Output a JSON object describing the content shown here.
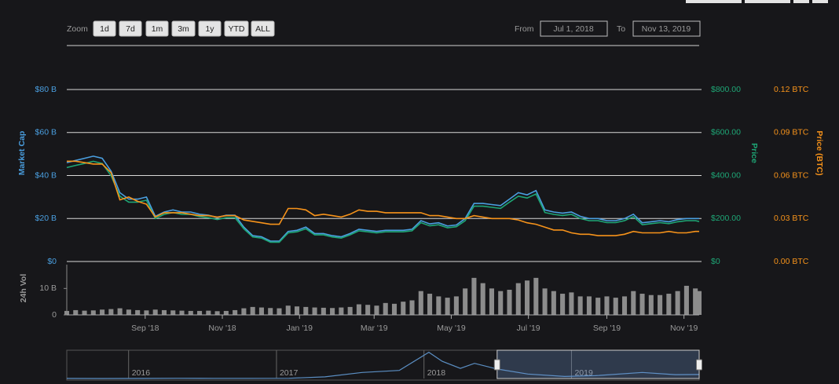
{
  "zoom": {
    "label": "Zoom",
    "buttons": [
      "1d",
      "7d",
      "1m",
      "3m",
      "1y",
      "YTD",
      "ALL"
    ]
  },
  "range": {
    "from_label": "From",
    "from": "Jul 1, 2018",
    "to_label": "To",
    "to": "Nov 13, 2019"
  },
  "chart_data": [
    {
      "type": "line",
      "x": [
        "2018-07-01",
        "2018-07-08",
        "2018-07-15",
        "2018-07-22",
        "2018-07-29",
        "2018-08-05",
        "2018-08-12",
        "2018-08-19",
        "2018-08-26",
        "2018-09-02",
        "2018-09-09",
        "2018-09-16",
        "2018-09-23",
        "2018-09-30",
        "2018-10-07",
        "2018-10-14",
        "2018-10-21",
        "2018-10-28",
        "2018-11-04",
        "2018-11-11",
        "2018-11-18",
        "2018-11-25",
        "2018-12-02",
        "2018-12-09",
        "2018-12-16",
        "2018-12-23",
        "2018-12-30",
        "2019-01-06",
        "2019-01-13",
        "2019-01-20",
        "2019-01-27",
        "2019-02-03",
        "2019-02-10",
        "2019-02-17",
        "2019-02-24",
        "2019-03-03",
        "2019-03-10",
        "2019-03-17",
        "2019-03-24",
        "2019-03-31",
        "2019-04-07",
        "2019-04-14",
        "2019-04-21",
        "2019-04-28",
        "2019-05-05",
        "2019-05-12",
        "2019-05-19",
        "2019-05-26",
        "2019-06-02",
        "2019-06-09",
        "2019-06-16",
        "2019-06-23",
        "2019-06-30",
        "2019-07-07",
        "2019-07-14",
        "2019-07-21",
        "2019-07-28",
        "2019-08-04",
        "2019-08-11",
        "2019-08-18",
        "2019-08-25",
        "2019-09-01",
        "2019-09-08",
        "2019-09-15",
        "2019-09-22",
        "2019-09-29",
        "2019-10-06",
        "2019-10-13",
        "2019-10-20",
        "2019-10-27",
        "2019-11-03",
        "2019-11-10",
        "2019-11-13"
      ],
      "xlim": [
        "2018-07-01",
        "2019-11-13"
      ],
      "ylim": [
        0,
        80
      ],
      "yticks": [
        {
          "value": 0,
          "label": "$0"
        },
        {
          "value": 20,
          "label": "$20 B"
        },
        {
          "value": 40,
          "label": "$40 B"
        },
        {
          "value": 60,
          "label": "$60 B"
        },
        {
          "value": 80,
          "label": "$80 B"
        }
      ],
      "y2lim": [
        0,
        800
      ],
      "y2ticks": [
        {
          "value": 0,
          "label": "$0"
        },
        {
          "value": 200,
          "label": "$200.00"
        },
        {
          "value": 400,
          "label": "$400.00"
        },
        {
          "value": 600,
          "label": "$600.00"
        },
        {
          "value": 800,
          "label": "$800.00"
        }
      ],
      "y3lim": [
        0,
        0.12
      ],
      "y3ticks": [
        {
          "value": 0,
          "label": "0.00 BTC"
        },
        {
          "value": 0.03,
          "label": "0.03 BTC"
        },
        {
          "value": 0.06,
          "label": "0.06 BTC"
        },
        {
          "value": 0.09,
          "label": "0.09 BTC"
        },
        {
          "value": 0.12,
          "label": "0.12 BTC"
        }
      ],
      "grid": true,
      "series": [
        {
          "name": "Market Cap",
          "color": "#4a9fe0",
          "values": [
            46,
            47,
            48,
            49,
            48,
            42,
            32,
            29,
            29,
            30,
            21,
            23,
            24,
            23,
            23,
            22,
            21.5,
            20.5,
            21.5,
            21.5,
            16,
            12,
            11.5,
            9.5,
            9.5,
            14,
            14.5,
            16,
            13,
            13,
            12,
            11.5,
            13,
            15,
            14.5,
            14,
            14.5,
            14.5,
            14.5,
            15,
            19,
            17.5,
            18,
            16.5,
            17,
            20,
            27,
            27,
            26.5,
            26,
            29,
            32,
            31,
            33,
            24,
            23,
            22.5,
            23,
            21,
            20,
            20,
            19,
            19,
            20,
            22,
            18,
            18.5,
            19,
            18.5,
            19.5,
            20,
            20,
            20
          ]
        },
        {
          "name": "Price",
          "color": "#1ea776",
          "axis": "y2",
          "values": [
            437,
            447,
            456,
            466,
            456,
            399,
            304,
            276,
            276,
            285,
            200,
            219,
            228,
            219,
            219,
            209,
            204,
            195,
            204,
            204,
            152,
            114,
            109,
            90,
            90,
            133,
            138,
            152,
            124,
            124,
            114,
            109,
            124,
            143,
            138,
            133,
            138,
            138,
            138,
            143,
            181,
            166,
            171,
            157,
            162,
            190,
            257,
            257,
            252,
            247,
            276,
            304,
            295,
            314,
            228,
            219,
            214,
            219,
            200,
            190,
            190,
            181,
            181,
            190,
            209,
            171,
            176,
            181,
            176,
            185,
            190,
            190,
            186
          ]
        },
        {
          "name": "Price (BTC)",
          "color": "#f7931a",
          "axis": "y3",
          "values": [
            0.07,
            0.07,
            0.069,
            0.068,
            0.068,
            0.062,
            0.043,
            0.045,
            0.042,
            0.04,
            0.031,
            0.034,
            0.034,
            0.034,
            0.033,
            0.032,
            0.032,
            0.031,
            0.032,
            0.032,
            0.029,
            0.028,
            0.027,
            0.026,
            0.026,
            0.037,
            0.037,
            0.036,
            0.032,
            0.033,
            0.032,
            0.031,
            0.033,
            0.036,
            0.035,
            0.035,
            0.034,
            0.034,
            0.034,
            0.034,
            0.034,
            0.032,
            0.032,
            0.031,
            0.03,
            0.03,
            0.032,
            0.031,
            0.03,
            0.03,
            0.03,
            0.029,
            0.027,
            0.026,
            0.024,
            0.022,
            0.022,
            0.02,
            0.019,
            0.019,
            0.018,
            0.018,
            0.018,
            0.019,
            0.021,
            0.02,
            0.02,
            0.02,
            0.021,
            0.02,
            0.02,
            0.021,
            0.021
          ]
        }
      ]
    },
    {
      "type": "bar",
      "ylabel": "24h Vol",
      "x": [
        "2018-07-01",
        "2018-07-08",
        "2018-07-15",
        "2018-07-22",
        "2018-07-29",
        "2018-08-05",
        "2018-08-12",
        "2018-08-19",
        "2018-08-26",
        "2018-09-02",
        "2018-09-09",
        "2018-09-16",
        "2018-09-23",
        "2018-09-30",
        "2018-10-07",
        "2018-10-14",
        "2018-10-21",
        "2018-10-28",
        "2018-11-04",
        "2018-11-11",
        "2018-11-18",
        "2018-11-25",
        "2018-12-02",
        "2018-12-09",
        "2018-12-16",
        "2018-12-23",
        "2018-12-30",
        "2019-01-06",
        "2019-01-13",
        "2019-01-20",
        "2019-01-27",
        "2019-02-03",
        "2019-02-10",
        "2019-02-17",
        "2019-02-24",
        "2019-03-03",
        "2019-03-10",
        "2019-03-17",
        "2019-03-24",
        "2019-03-31",
        "2019-04-07",
        "2019-04-14",
        "2019-04-21",
        "2019-04-28",
        "2019-05-05",
        "2019-05-12",
        "2019-05-19",
        "2019-05-26",
        "2019-06-02",
        "2019-06-09",
        "2019-06-16",
        "2019-06-23",
        "2019-06-30",
        "2019-07-07",
        "2019-07-14",
        "2019-07-21",
        "2019-07-28",
        "2019-08-04",
        "2019-08-11",
        "2019-08-18",
        "2019-08-25",
        "2019-09-01",
        "2019-09-08",
        "2019-09-15",
        "2019-09-22",
        "2019-09-29",
        "2019-10-06",
        "2019-10-13",
        "2019-10-20",
        "2019-10-27",
        "2019-11-03",
        "2019-11-10",
        "2019-11-13"
      ],
      "xlim": [
        "2018-07-01",
        "2019-11-13"
      ],
      "xticks": [
        {
          "value": "2018-09-01",
          "label": "Sep '18"
        },
        {
          "value": "2018-11-01",
          "label": "Nov '18"
        },
        {
          "value": "2019-01-01",
          "label": "Jan '19"
        },
        {
          "value": "2019-03-01",
          "label": "Mar '19"
        },
        {
          "value": "2019-05-01",
          "label": "May '19"
        },
        {
          "value": "2019-07-01",
          "label": "Jul '19"
        },
        {
          "value": "2019-09-01",
          "label": "Sep '19"
        },
        {
          "value": "2019-11-01",
          "label": "Nov '19"
        }
      ],
      "ylim": [
        0,
        19
      ],
      "yticks": [
        0,
        {
          "value": 10,
          "label": "10 B"
        }
      ],
      "color": "#8c8c8c",
      "values": [
        1.5,
        1.8,
        1.6,
        1.7,
        2,
        2.2,
        2.5,
        2,
        1.8,
        1.7,
        2,
        1.8,
        1.7,
        1.6,
        1.5,
        1.5,
        1.6,
        1.4,
        1.5,
        1.8,
        2.5,
        3,
        2.8,
        2.6,
        2.5,
        3.5,
        3.2,
        3,
        2.8,
        2.7,
        2.6,
        2.8,
        3,
        4,
        3.8,
        3.5,
        4.5,
        4.2,
        5,
        5.5,
        9,
        8,
        7,
        6.5,
        7,
        10,
        14,
        12,
        10,
        9,
        9.5,
        12,
        13,
        14,
        10,
        9,
        8,
        8.5,
        7,
        7,
        6.5,
        7,
        6.5,
        7,
        9,
        8,
        7.5,
        7.5,
        8,
        9,
        11,
        10,
        9
      ]
    },
    {
      "type": "line",
      "x": [
        "2015-08-01",
        "2015-11-01",
        "2016-02-01",
        "2016-05-01",
        "2016-08-01",
        "2016-11-01",
        "2017-02-01",
        "2017-05-01",
        "2017-08-01",
        "2017-11-01",
        "2018-01-13",
        "2018-02-15",
        "2018-04-01",
        "2018-05-06",
        "2018-07-01",
        "2018-09-15",
        "2018-12-15",
        "2019-03-01",
        "2019-06-25",
        "2019-09-15",
        "2019-11-13"
      ],
      "xlim": [
        "2015-08-01",
        "2019-11-13"
      ],
      "xticks": [
        {
          "value": "2016-01-01",
          "label": "2016"
        },
        {
          "value": "2017-01-01",
          "label": "2017"
        },
        {
          "value": "2018-01-01",
          "label": "2018"
        },
        {
          "value": "2019-01-01",
          "label": "2019"
        }
      ],
      "ylim": [
        0,
        140
      ],
      "color": "#5b8fc4",
      "values": [
        0.2,
        0.1,
        0.5,
        1,
        0.9,
        0.8,
        1.2,
        8,
        30,
        40,
        130,
        85,
        50,
        75,
        47,
        22,
        10,
        14,
        30,
        19,
        20
      ]
    }
  ]
}
